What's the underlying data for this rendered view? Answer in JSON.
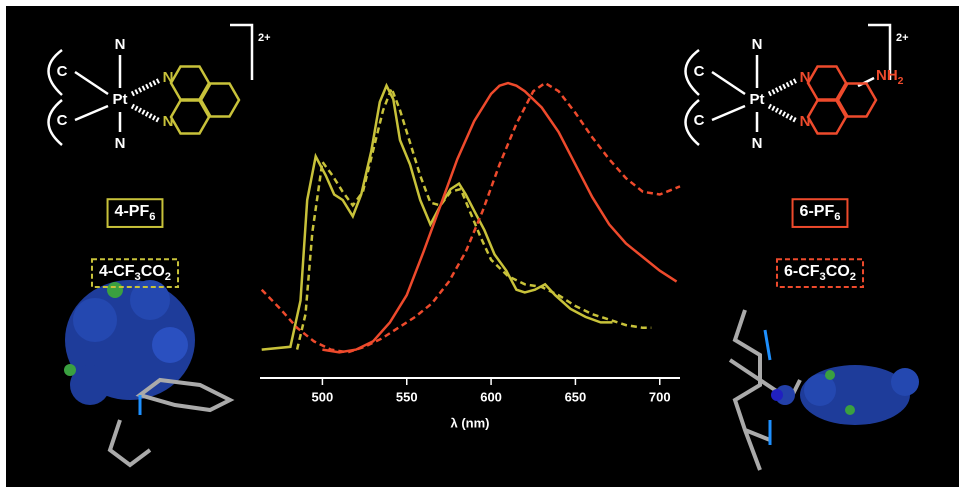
{
  "chart_data": {
    "type": "line",
    "xlabel": "λ (nm)",
    "xlim": [
      463,
      712
    ],
    "xticks": [
      500,
      550,
      600,
      650,
      700
    ],
    "ylim": [
      0,
      1
    ],
    "series": [
      {
        "name": "4-PF6",
        "color": "#c8c23a",
        "dash": false,
        "x": [
          464,
          481,
          487,
          491,
          496,
          502,
          507,
          512,
          518,
          523,
          529,
          534,
          538,
          542,
          546,
          552,
          558,
          564,
          570,
          576,
          581,
          585,
          590,
          596,
          602,
          609,
          615,
          620,
          626,
          632,
          638,
          647,
          656,
          665,
          672
        ],
        "values": [
          0.02,
          0.03,
          0.2,
          0.57,
          0.73,
          0.66,
          0.59,
          0.57,
          0.51,
          0.59,
          0.75,
          0.93,
          0.99,
          0.94,
          0.79,
          0.7,
          0.57,
          0.48,
          0.55,
          0.61,
          0.63,
          0.59,
          0.53,
          0.46,
          0.37,
          0.31,
          0.24,
          0.23,
          0.24,
          0.26,
          0.22,
          0.17,
          0.14,
          0.12,
          0.12
        ]
      },
      {
        "name": "4-CF3CO2",
        "color": "#c8c23a",
        "dash": true,
        "x": [
          485,
          490,
          494,
          500,
          506,
          512,
          518,
          524,
          530,
          536,
          541,
          546,
          552,
          558,
          564,
          570,
          576,
          582,
          588,
          594,
          600,
          610,
          620,
          630,
          640,
          650,
          660,
          670,
          680,
          690,
          695
        ],
        "values": [
          0.02,
          0.15,
          0.45,
          0.71,
          0.66,
          0.6,
          0.55,
          0.6,
          0.75,
          0.9,
          0.98,
          0.9,
          0.78,
          0.66,
          0.56,
          0.55,
          0.6,
          0.61,
          0.52,
          0.43,
          0.35,
          0.29,
          0.26,
          0.25,
          0.22,
          0.18,
          0.15,
          0.13,
          0.11,
          0.1,
          0.1
        ]
      },
      {
        "name": "6-PF6",
        "color": "#ee4a2c",
        "dash": false,
        "x": [
          500,
          510,
          520,
          530,
          540,
          550,
          560,
          570,
          580,
          590,
          600,
          605,
          610,
          615,
          620,
          630,
          640,
          650,
          660,
          670,
          680,
          690,
          700,
          710
        ],
        "values": [
          0.02,
          0.01,
          0.02,
          0.05,
          0.12,
          0.22,
          0.38,
          0.55,
          0.72,
          0.86,
          0.96,
          0.99,
          1.0,
          0.99,
          0.97,
          0.91,
          0.82,
          0.7,
          0.58,
          0.48,
          0.41,
          0.36,
          0.31,
          0.27
        ]
      },
      {
        "name": "6-CF3CO2",
        "color": "#ee4a2c",
        "dash": true,
        "x": [
          464,
          475,
          485,
          495,
          505,
          515,
          525,
          535,
          545,
          555,
          565,
          575,
          585,
          595,
          605,
          615,
          625,
          632,
          640,
          650,
          660,
          670,
          680,
          690,
          700,
          712
        ],
        "values": [
          0.24,
          0.17,
          0.1,
          0.05,
          0.02,
          0.01,
          0.03,
          0.06,
          0.1,
          0.14,
          0.19,
          0.27,
          0.38,
          0.53,
          0.7,
          0.85,
          0.97,
          1.0,
          0.97,
          0.89,
          0.8,
          0.72,
          0.65,
          0.6,
          0.59,
          0.62
        ]
      }
    ]
  },
  "structures": [
    {
      "charge": "2+",
      "atoms": [
        "N",
        "C",
        "Pt",
        "C",
        "N",
        "N",
        "N"
      ]
    },
    {
      "charge": "2+",
      "atoms": [
        "N",
        "C",
        "Pt",
        "C",
        "N",
        "N",
        "N",
        "NH2"
      ]
    }
  ]
}
